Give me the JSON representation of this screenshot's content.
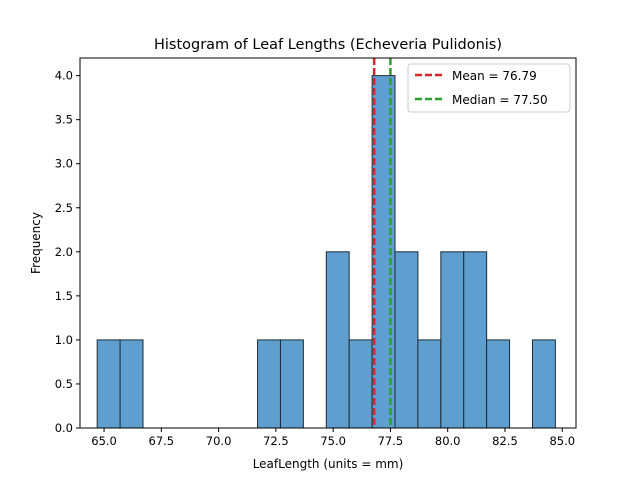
{
  "chart_data": {
    "type": "bar",
    "title": "Histogram of Leaf Lengths (Echeveria Pulidonis)",
    "xlabel": "LeafLength (units = mm)",
    "ylabel": "Frequency",
    "xlim": [
      63.95,
      85.6
    ],
    "ylim": [
      0,
      4.2
    ],
    "xticks": [
      "65.0",
      "67.5",
      "70.0",
      "72.5",
      "75.0",
      "77.5",
      "80.0",
      "82.5",
      "85.0"
    ],
    "yticks": [
      "0.0",
      "0.5",
      "1.0",
      "1.5",
      "2.0",
      "2.5",
      "3.0",
      "3.5",
      "4.0"
    ],
    "bins": [
      {
        "start": 64.7,
        "end": 65.7,
        "count": 1
      },
      {
        "start": 65.7,
        "end": 66.7,
        "count": 1
      },
      {
        "start": 66.7,
        "end": 67.7,
        "count": 0
      },
      {
        "start": 67.7,
        "end": 68.7,
        "count": 0
      },
      {
        "start": 68.7,
        "end": 69.7,
        "count": 0
      },
      {
        "start": 69.7,
        "end": 70.7,
        "count": 0
      },
      {
        "start": 70.7,
        "end": 71.7,
        "count": 0
      },
      {
        "start": 71.7,
        "end": 72.7,
        "count": 1
      },
      {
        "start": 72.7,
        "end": 73.7,
        "count": 1
      },
      {
        "start": 73.7,
        "end": 74.7,
        "count": 0
      },
      {
        "start": 74.7,
        "end": 75.7,
        "count": 2
      },
      {
        "start": 75.7,
        "end": 76.7,
        "count": 1
      },
      {
        "start": 76.7,
        "end": 77.7,
        "count": 4
      },
      {
        "start": 77.7,
        "end": 78.7,
        "count": 2
      },
      {
        "start": 78.7,
        "end": 79.7,
        "count": 1
      },
      {
        "start": 79.7,
        "end": 80.7,
        "count": 2
      },
      {
        "start": 80.7,
        "end": 81.7,
        "count": 2
      },
      {
        "start": 81.7,
        "end": 82.7,
        "count": 1
      },
      {
        "start": 82.7,
        "end": 83.7,
        "count": 0
      },
      {
        "start": 83.7,
        "end": 84.7,
        "count": 1
      }
    ],
    "mean": 76.79,
    "median": 77.5,
    "legend": {
      "placement": "top-right",
      "entries": [
        {
          "label": "Mean = 76.79",
          "color": "#d62728",
          "style": "dashed"
        },
        {
          "label": "Median = 77.50",
          "color": "#2ca02c",
          "style": "dashed"
        }
      ]
    },
    "bar_color": "#5f9fcf",
    "bar_edge_color": "#1f2a33",
    "grid": false
  }
}
